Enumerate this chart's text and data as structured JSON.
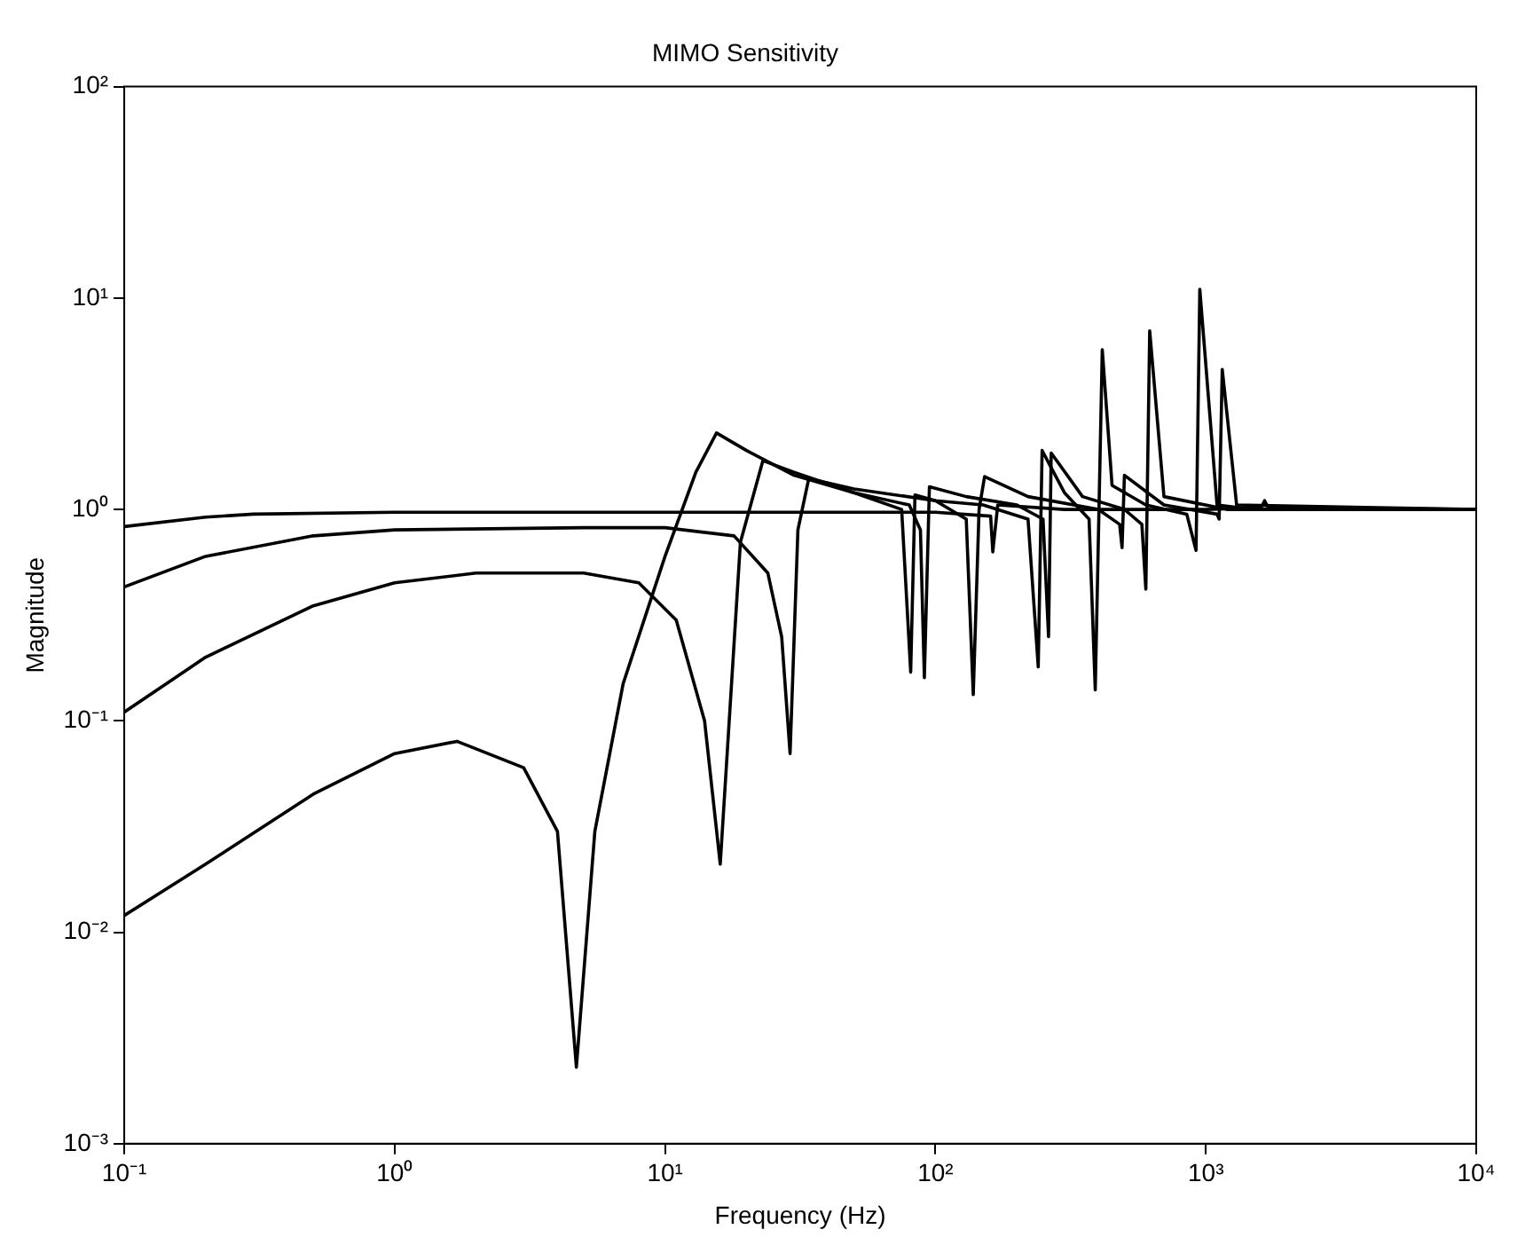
{
  "chart_data": {
    "type": "line",
    "title": "MIMO Sensitivity",
    "xlabel": "Frequency (Hz)",
    "ylabel": "Magnitude",
    "log": "xy",
    "grid": false,
    "legend": false,
    "marker": "none",
    "line_style": "solid",
    "xlim": [
      0.1,
      10000
    ],
    "ylim": [
      0.001,
      100
    ],
    "xticks": [
      {
        "value": 0.1,
        "label": "10⁻¹"
      },
      {
        "value": 1,
        "label": "10⁰"
      },
      {
        "value": 10,
        "label": "10¹"
      },
      {
        "value": 100,
        "label": "10²"
      },
      {
        "value": 1000,
        "label": "10³"
      },
      {
        "value": 10000,
        "label": "10⁴"
      }
    ],
    "yticks": [
      {
        "value": 0.001,
        "label": "10⁻³"
      },
      {
        "value": 0.01,
        "label": "10⁻²"
      },
      {
        "value": 0.1,
        "label": "10⁻¹"
      },
      {
        "value": 1,
        "label": "10⁰"
      },
      {
        "value": 10,
        "label": "10¹"
      },
      {
        "value": 100,
        "label": "10²"
      }
    ],
    "series": [
      {
        "color": "#000000",
        "x": [
          0.1,
          0.2,
          0.3,
          1,
          10,
          100,
          160,
          163,
          170,
          300,
          1000,
          1600,
          1650,
          1700,
          10000
        ],
        "values": [
          0.83,
          0.92,
          0.95,
          0.97,
          0.97,
          0.97,
          0.93,
          0.63,
          1.05,
          1.0,
          1.0,
          1.02,
          1.1,
          1.02,
          1.0
        ]
      },
      {
        "color": "#000000",
        "x": [
          0.1,
          0.2,
          0.5,
          1,
          5,
          10,
          18,
          24,
          27,
          29,
          31,
          34,
          50,
          100,
          130,
          138,
          145,
          152,
          220,
          400,
          480,
          490,
          500,
          700,
          1100,
          1120,
          1150,
          1300,
          10000
        ],
        "values": [
          0.43,
          0.6,
          0.75,
          0.8,
          0.82,
          0.82,
          0.75,
          0.5,
          0.25,
          0.07,
          0.8,
          1.4,
          1.25,
          1.1,
          0.9,
          0.133,
          1.0,
          1.43,
          1.15,
          1.0,
          0.85,
          0.66,
          1.45,
          1.05,
          0.95,
          0.9,
          4.6,
          1.05,
          1.0
        ]
      },
      {
        "color": "#000000",
        "x": [
          0.1,
          0.2,
          0.5,
          1,
          2,
          5,
          8,
          11,
          14,
          16,
          19,
          23,
          30,
          50,
          80,
          88,
          91,
          95,
          130,
          200,
          250,
          262,
          268,
          350,
          500,
          580,
          600,
          620,
          700,
          1200,
          10000
        ],
        "values": [
          0.11,
          0.2,
          0.35,
          0.45,
          0.5,
          0.5,
          0.45,
          0.3,
          0.1,
          0.021,
          0.7,
          1.7,
          1.5,
          1.2,
          1.05,
          0.8,
          0.16,
          1.28,
          1.15,
          1.05,
          0.9,
          0.25,
          1.85,
          1.15,
          1.0,
          0.85,
          0.42,
          7,
          1.15,
          1.0,
          1.0
        ]
      },
      {
        "color": "#000000",
        "x": [
          0.1,
          0.2,
          0.5,
          1,
          1.7,
          3,
          4,
          4.7,
          5.5,
          7,
          10,
          13,
          15.5,
          20,
          30,
          50,
          75,
          81,
          84,
          100,
          150,
          220,
          240,
          248,
          300,
          370,
          390,
          414,
          450,
          600,
          850,
          920,
          950,
          1100,
          1500,
          10000
        ],
        "values": [
          0.012,
          0.021,
          0.045,
          0.07,
          0.08,
          0.06,
          0.03,
          0.0023,
          0.03,
          0.15,
          0.6,
          1.5,
          2.3,
          1.9,
          1.45,
          1.2,
          1.0,
          0.17,
          1.17,
          1.1,
          1.05,
          0.9,
          0.18,
          1.9,
          1.2,
          0.9,
          0.14,
          5.7,
          1.3,
          1.05,
          0.95,
          0.64,
          11,
          1.05,
          1.0,
          1.0
        ]
      }
    ]
  }
}
